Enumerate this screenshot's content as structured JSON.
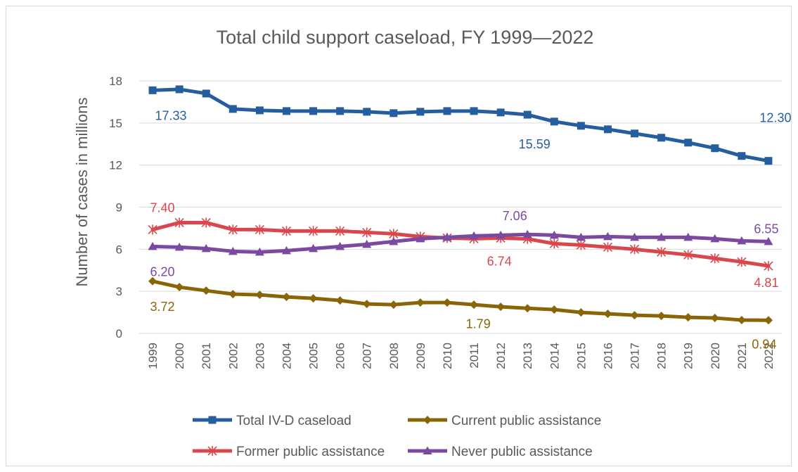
{
  "chart_data": {
    "type": "line",
    "title": "Total child support caseload, FY 1999—2022",
    "xlabel": "",
    "ylabel": "Number of cases in millions",
    "ylim": [
      0,
      18
    ],
    "yticks": [
      "0",
      "3",
      "6",
      "9",
      "12",
      "15",
      "18"
    ],
    "x": [
      "1999",
      "2000",
      "2001",
      "2002",
      "2003",
      "2004",
      "2005",
      "2006",
      "2007",
      "2008",
      "2009",
      "2010",
      "2011",
      "2012",
      "2013",
      "2014",
      "2015",
      "2016",
      "2017",
      "2018",
      "2019",
      "2020",
      "2021",
      "2022"
    ],
    "grid": true,
    "legend_position": "bottom",
    "series": [
      {
        "name": "Total IV-D caseload",
        "color": "#255e9f",
        "marker": "square",
        "values": [
          17.33,
          17.4,
          17.1,
          16.0,
          15.9,
          15.85,
          15.85,
          15.85,
          15.8,
          15.7,
          15.8,
          15.85,
          15.85,
          15.75,
          15.59,
          15.1,
          14.8,
          14.55,
          14.25,
          13.95,
          13.6,
          13.2,
          12.65,
          12.3
        ],
        "labels": [
          {
            "index": 0,
            "text": "17.33"
          },
          {
            "index": 14,
            "text": "15.59"
          },
          {
            "index": 23,
            "text": "12.30"
          }
        ]
      },
      {
        "name": "Current public assistance",
        "color": "#8a6508",
        "marker": "diamond",
        "values": [
          3.72,
          3.3,
          3.05,
          2.8,
          2.75,
          2.6,
          2.5,
          2.35,
          2.1,
          2.05,
          2.2,
          2.2,
          2.05,
          1.9,
          1.79,
          1.7,
          1.5,
          1.4,
          1.3,
          1.25,
          1.15,
          1.1,
          0.95,
          0.94
        ],
        "labels": [
          {
            "index": 0,
            "text": "3.72"
          },
          {
            "index": 14,
            "text": "1.79"
          },
          {
            "index": 23,
            "text": "0.94"
          }
        ]
      },
      {
        "name": "Former public assistance",
        "color": "#d9474d",
        "marker": "asterisk",
        "values": [
          7.4,
          7.9,
          7.9,
          7.4,
          7.4,
          7.3,
          7.3,
          7.3,
          7.2,
          7.1,
          6.9,
          6.8,
          6.75,
          6.8,
          6.74,
          6.4,
          6.3,
          6.15,
          6.0,
          5.8,
          5.6,
          5.35,
          5.1,
          4.81
        ],
        "labels": [
          {
            "index": 0,
            "text": "7.40"
          },
          {
            "index": 14,
            "text": "6.74"
          },
          {
            "index": 23,
            "text": "4.81"
          }
        ]
      },
      {
        "name": "Never public assistance",
        "color": "#7b4aa0",
        "marker": "triangle",
        "values": [
          6.2,
          6.15,
          6.05,
          5.85,
          5.8,
          5.9,
          6.05,
          6.2,
          6.35,
          6.55,
          6.75,
          6.85,
          6.95,
          7.0,
          7.06,
          7.0,
          6.85,
          6.9,
          6.85,
          6.85,
          6.85,
          6.75,
          6.6,
          6.55
        ],
        "labels": [
          {
            "index": 0,
            "text": "6.20"
          },
          {
            "index": 14,
            "text": "7.06"
          },
          {
            "index": 23,
            "text": "6.55"
          }
        ]
      }
    ]
  }
}
